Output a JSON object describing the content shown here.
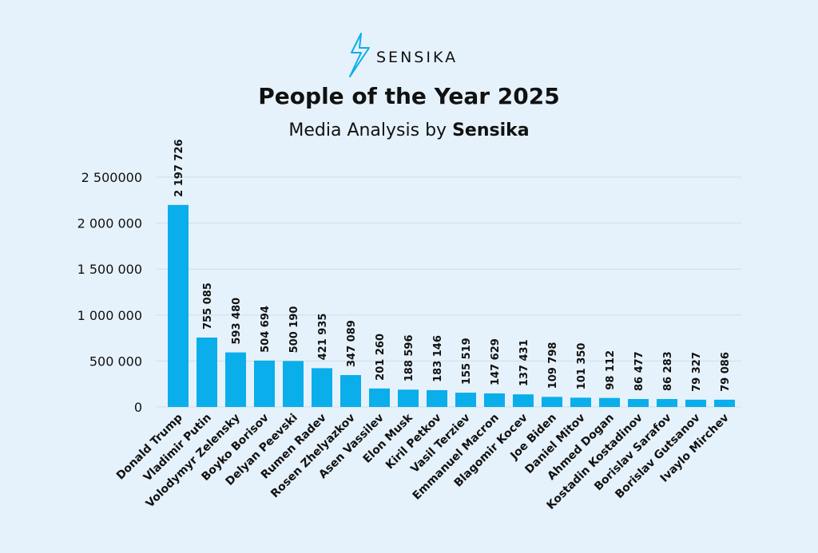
{
  "chart_data": {
    "type": "bar",
    "brand": "SENSIKA",
    "title": "People of the Year 2025",
    "subtitle": "Media Analysis by",
    "subtitle_brand": "Sensika",
    "categories": [
      "Donald Trump",
      "Vladimir Putin",
      "Volodymyr Zelensky",
      "Boyko Borisov",
      "Delyan Peevski",
      "Rumen Radev",
      "Rosen Zhelyazkov",
      "Asen Vassilev",
      "Elon Musk",
      "Kiril Petkov",
      "Vasil Terziev",
      "Emmanuel Macron",
      "Blagomir Kocev",
      "Joe Biden",
      "Daniel Mitov",
      "Ahmed Dogan",
      "Kostadin Kostadinov",
      "Borislav Sarafov",
      "Borislav Gutsanov",
      "Ivaylo Mirchev"
    ],
    "values": [
      2197726,
      755085,
      593480,
      504694,
      500190,
      421935,
      347089,
      201260,
      188596,
      183146,
      155519,
      147629,
      137431,
      109798,
      101350,
      98112,
      86477,
      86283,
      79327,
      79086
    ],
    "value_labels": [
      "2 197 726",
      "755 085",
      "593 480",
      "504 694",
      "500 190",
      "421 935",
      "347 089",
      "201 260",
      "188 596",
      "183 146",
      "155 519",
      "147 629",
      "137 431",
      "109 798",
      "101 350",
      "98 112",
      "86 477",
      "86 283",
      "79 327",
      "79 086"
    ],
    "color": "#0aaeea",
    "ylim": [
      0,
      2500000
    ],
    "yticks": [
      0,
      {
        "value": 500000,
        "label": "500 000"
      },
      {
        "value": 1000000,
        "label": "1 000 000"
      },
      {
        "value": 1500000,
        "label": "1 500 000"
      },
      {
        "value": 2000000,
        "label": "2 000 000"
      },
      {
        "value": 2500000,
        "label": "2 500000"
      }
    ],
    "grid": true
  }
}
